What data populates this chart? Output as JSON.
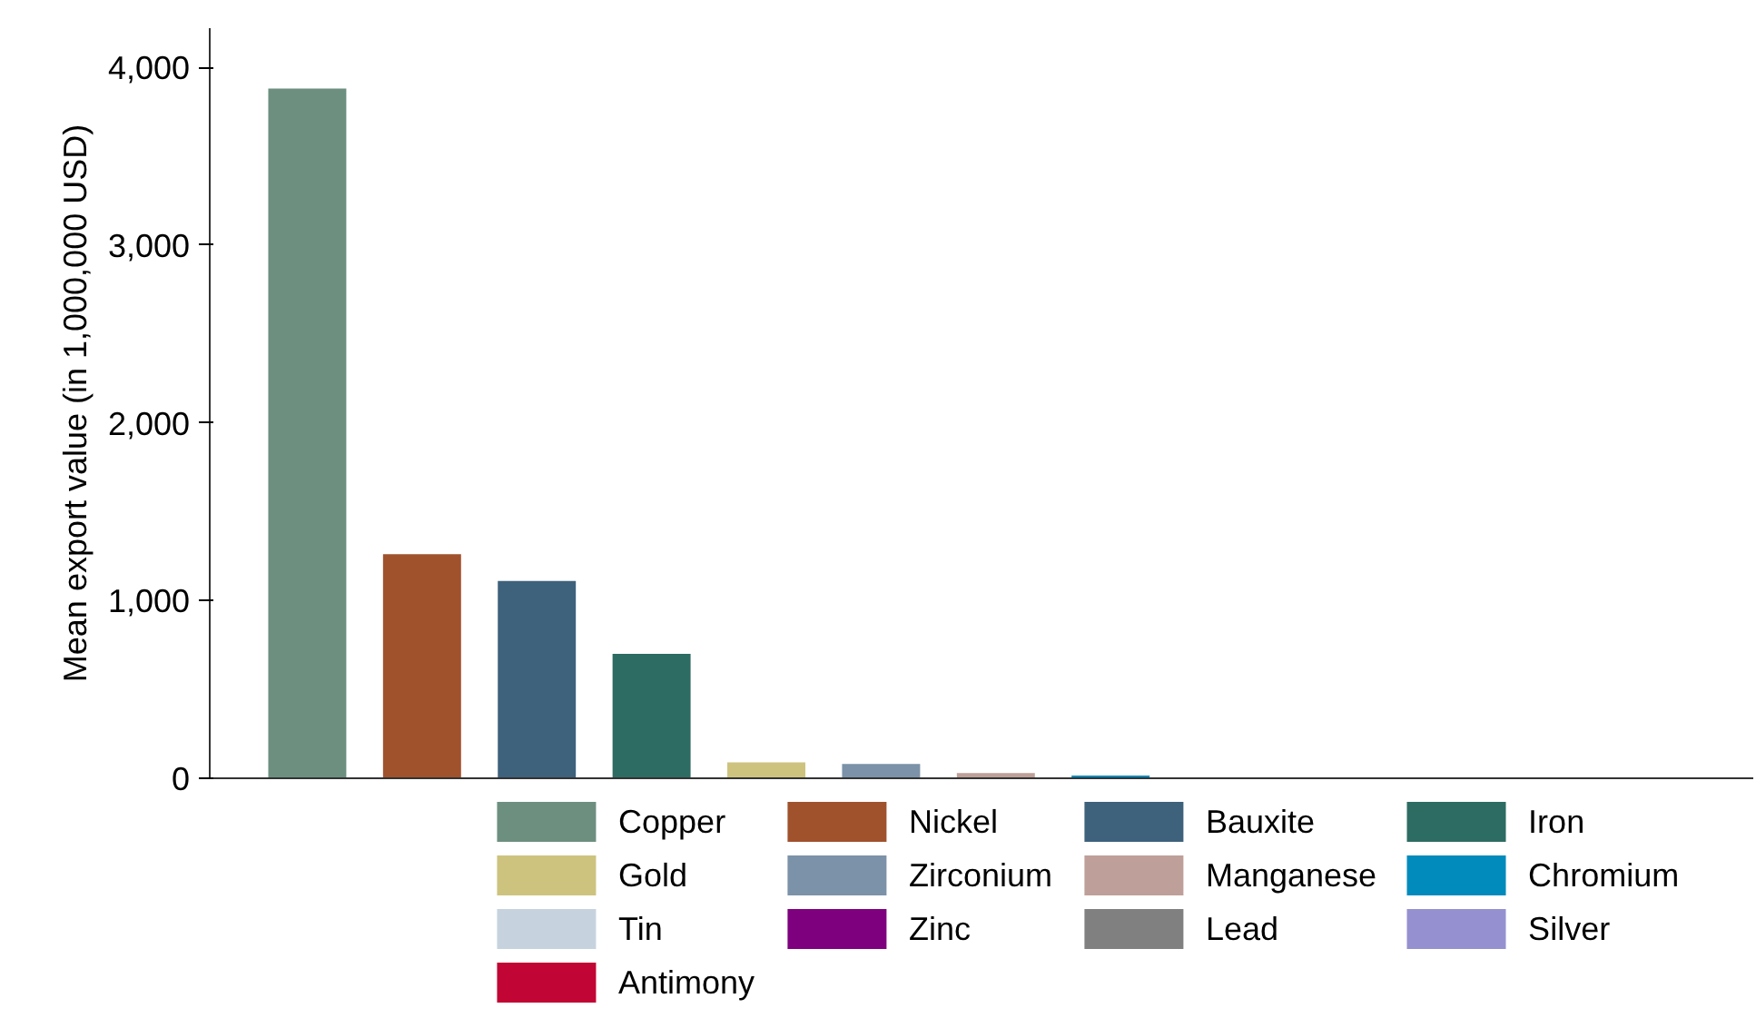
{
  "chart_data": {
    "type": "bar",
    "ylabel": "Mean export value (in 1,000,000 USD)",
    "categories": [
      null,
      null,
      null,
      null,
      null,
      null,
      null,
      null,
      null,
      null,
      null,
      null,
      null
    ],
    "series": [
      {
        "name": "Copper",
        "color": "#6d8f80",
        "values": [
          3880,
          null,
          null,
          null,
          null,
          null,
          null,
          null,
          null,
          null,
          null,
          null,
          null
        ]
      },
      {
        "name": "Nickel",
        "color": "#a0522d",
        "values": [
          null,
          1260,
          null,
          null,
          null,
          null,
          null,
          null,
          null,
          null,
          null,
          null,
          null
        ]
      },
      {
        "name": "Bauxite",
        "color": "#3e617c",
        "values": [
          null,
          null,
          1110,
          null,
          null,
          null,
          null,
          null,
          null,
          null,
          null,
          null,
          null
        ]
      },
      {
        "name": "Iron",
        "color": "#2d6c62",
        "values": [
          null,
          null,
          null,
          700,
          null,
          null,
          null,
          null,
          null,
          null,
          null,
          null,
          null
        ]
      },
      {
        "name": "Gold",
        "color": "#cdc37e",
        "values": [
          null,
          null,
          null,
          null,
          90,
          null,
          null,
          null,
          null,
          null,
          null,
          null,
          null
        ]
      },
      {
        "name": "Zirconium",
        "color": "#7b92a8",
        "values": [
          null,
          null,
          null,
          null,
          null,
          80,
          null,
          null,
          null,
          null,
          null,
          null,
          null
        ]
      },
      {
        "name": "Manganese",
        "color": "#bf9f99",
        "values": [
          null,
          null,
          null,
          null,
          null,
          null,
          30,
          null,
          null,
          null,
          null,
          null,
          null
        ]
      },
      {
        "name": "Chromium",
        "color": "#008bbc",
        "values": [
          null,
          null,
          null,
          null,
          null,
          null,
          null,
          15,
          null,
          null,
          null,
          null,
          null
        ]
      },
      {
        "name": "Tin",
        "color": "#c6d3df",
        "values": [
          null,
          null,
          null,
          null,
          null,
          null,
          null,
          null,
          null,
          null,
          null,
          null,
          null
        ]
      },
      {
        "name": "Zinc",
        "color": "#7f007f",
        "values": [
          null,
          null,
          null,
          null,
          null,
          null,
          null,
          null,
          null,
          5,
          null,
          null,
          null
        ]
      },
      {
        "name": "Lead",
        "color": "#808080",
        "values": [
          null,
          null,
          null,
          null,
          null,
          null,
          null,
          null,
          null,
          null,
          null,
          null,
          null
        ]
      },
      {
        "name": "Silver",
        "color": "#9591d0",
        "values": [
          null,
          null,
          null,
          null,
          null,
          null,
          null,
          null,
          null,
          null,
          null,
          null,
          null
        ]
      },
      {
        "name": "Antimony",
        "color": "#c10534",
        "values": [
          null,
          null,
          null,
          null,
          null,
          null,
          null,
          null,
          null,
          null,
          null,
          null,
          null
        ]
      }
    ],
    "ylim": [
      0,
      4220
    ],
    "yticks": [
      {
        "value": 0,
        "label": "0"
      },
      {
        "value": 1000,
        "label": "1,000"
      },
      {
        "value": 2000,
        "label": "2,000"
      },
      {
        "value": 3000,
        "label": "3,000"
      },
      {
        "value": 4000,
        "label": "4,000"
      }
    ],
    "legend": "bottom"
  }
}
